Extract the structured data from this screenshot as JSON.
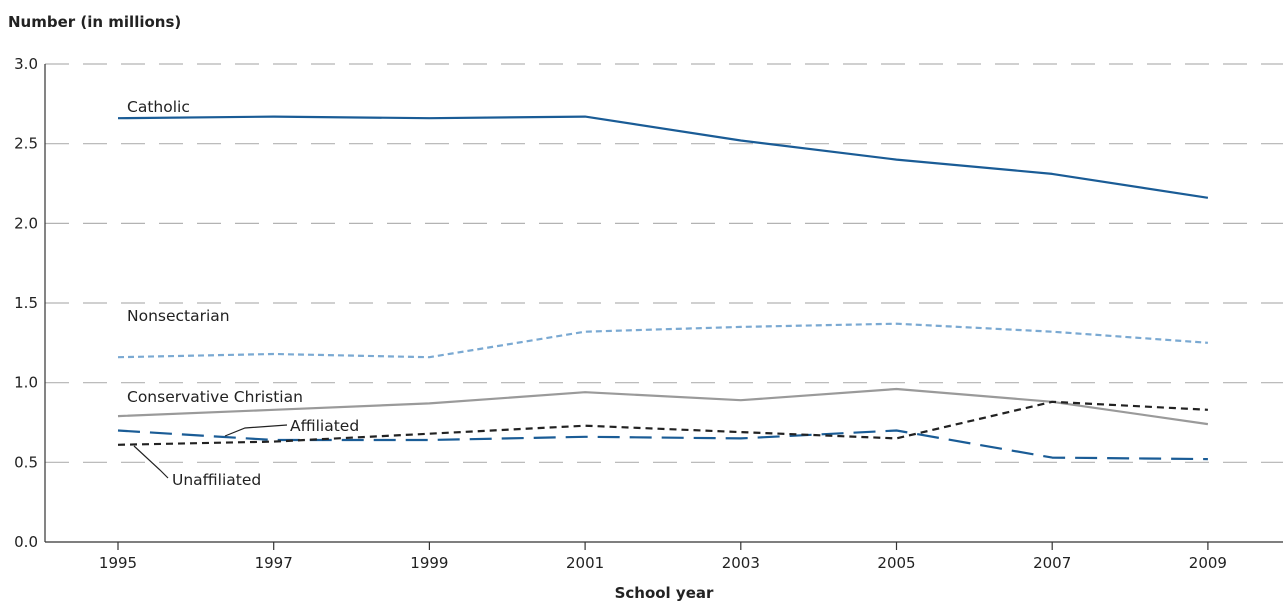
{
  "chart_data": {
    "type": "line",
    "title": "",
    "ylabel": "Number (in millions)",
    "xlabel": "School year",
    "x": [
      "1995",
      "1997",
      "1999",
      "2001",
      "2003",
      "2005",
      "2007",
      "2009"
    ],
    "ylim": [
      0,
      3.0
    ],
    "yticks": [
      "0.0",
      "0.5",
      "1.0",
      "1.5",
      "2.0",
      "2.5",
      "3.0"
    ],
    "grid": "horizontal dashed",
    "legend": "none; lines labeled directly",
    "series": [
      {
        "name": "Catholic",
        "values": [
          2.66,
          2.67,
          2.66,
          2.67,
          2.52,
          2.4,
          2.31,
          2.16
        ],
        "color": "#1a5c96",
        "style": "solid"
      },
      {
        "name": "Nonsectarian",
        "values": [
          1.16,
          1.18,
          1.16,
          1.32,
          1.35,
          1.37,
          1.32,
          1.25
        ],
        "color": "#7aa9d2",
        "style": "dotted-dash"
      },
      {
        "name": "Conservative Christian",
        "values": [
          0.79,
          0.83,
          0.87,
          0.94,
          0.89,
          0.96,
          0.88,
          0.74
        ],
        "color": "#9a9a9a",
        "style": "solid"
      },
      {
        "name": "Affiliated",
        "values": [
          0.7,
          0.64,
          0.64,
          0.66,
          0.65,
          0.7,
          0.53,
          0.52
        ],
        "color": "#1a5c96",
        "style": "long-dash"
      },
      {
        "name": "Unaffiliated",
        "values": [
          0.61,
          0.63,
          0.68,
          0.73,
          0.69,
          0.65,
          0.88,
          0.83
        ],
        "color": "#222222",
        "style": "short-dash"
      }
    ]
  }
}
